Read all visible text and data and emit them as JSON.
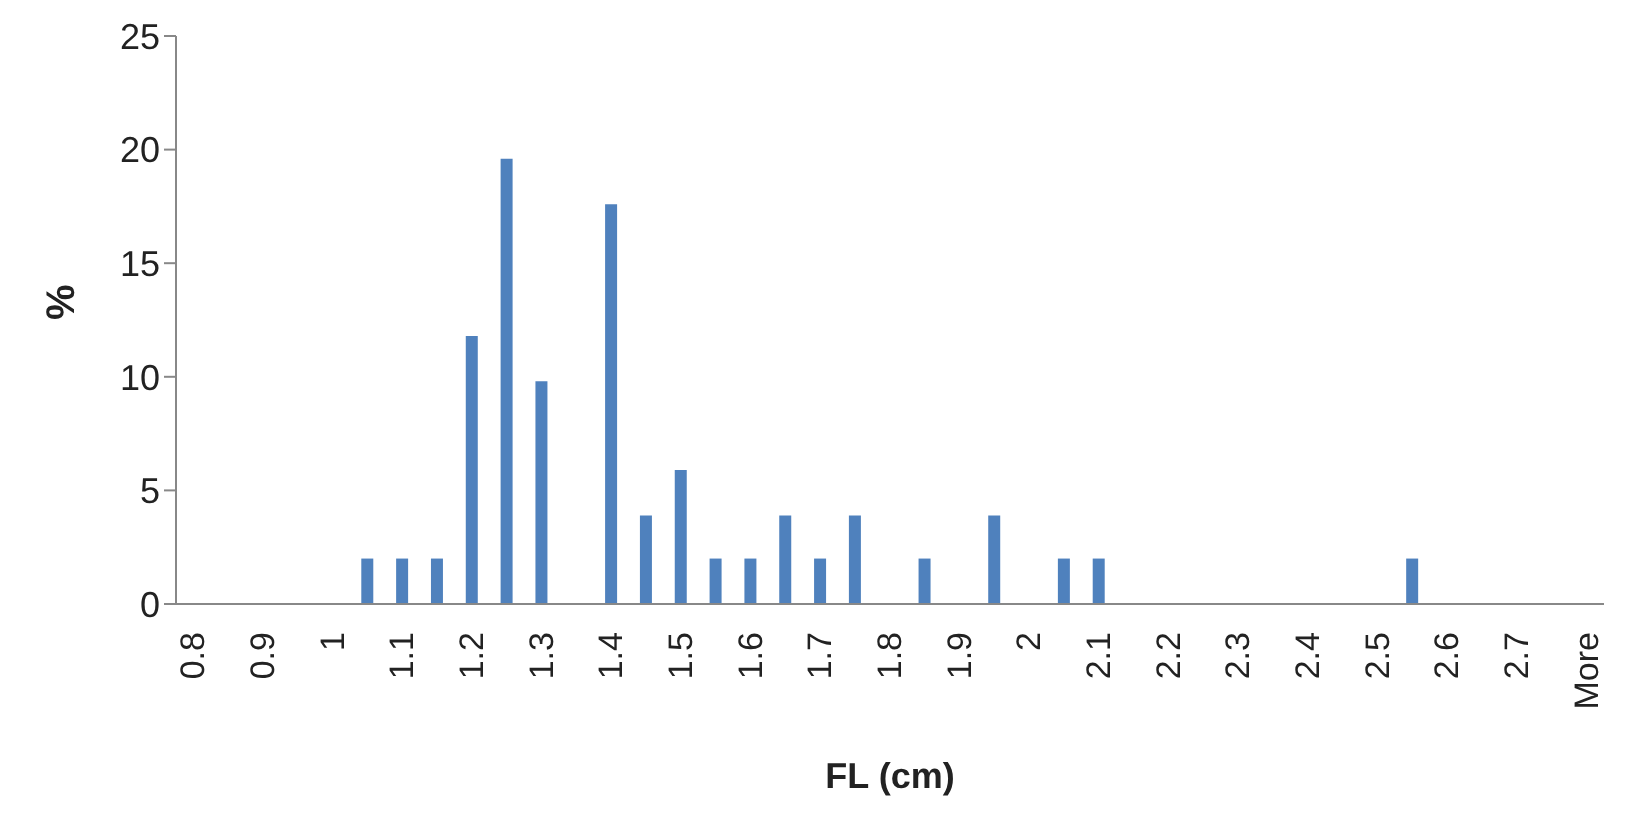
{
  "chart_data": {
    "type": "bar",
    "xlabel": "FL (cm)",
    "ylabel": "%",
    "categories": [
      "0.8",
      null,
      "0.9",
      null,
      "1",
      null,
      "1.1",
      null,
      "1.2",
      null,
      "1.3",
      null,
      "1.4",
      null,
      "1.5",
      null,
      "1.6",
      null,
      "1.7",
      null,
      "1.8",
      null,
      "1.9",
      null,
      "2",
      null,
      "2.1",
      null,
      "2.2",
      null,
      "2.3",
      null,
      "2.4",
      null,
      "2.5",
      null,
      "2.6",
      null,
      "2.7",
      null,
      "More"
    ],
    "values": [
      0,
      0,
      0,
      0,
      0,
      2,
      2,
      2,
      11.8,
      19.6,
      9.8,
      0,
      17.6,
      3.9,
      5.9,
      2,
      2,
      3.9,
      2,
      3.9,
      0,
      2,
      0,
      3.9,
      0,
      2,
      2,
      0,
      0,
      0,
      0,
      0,
      0,
      0,
      0,
      2,
      0,
      0,
      0,
      0,
      0
    ],
    "color": "#4f81bd",
    "ylim": [
      0,
      25
    ],
    "yticks": [
      0,
      5,
      10,
      15,
      20,
      25
    ],
    "grid": false,
    "legend": false
  }
}
